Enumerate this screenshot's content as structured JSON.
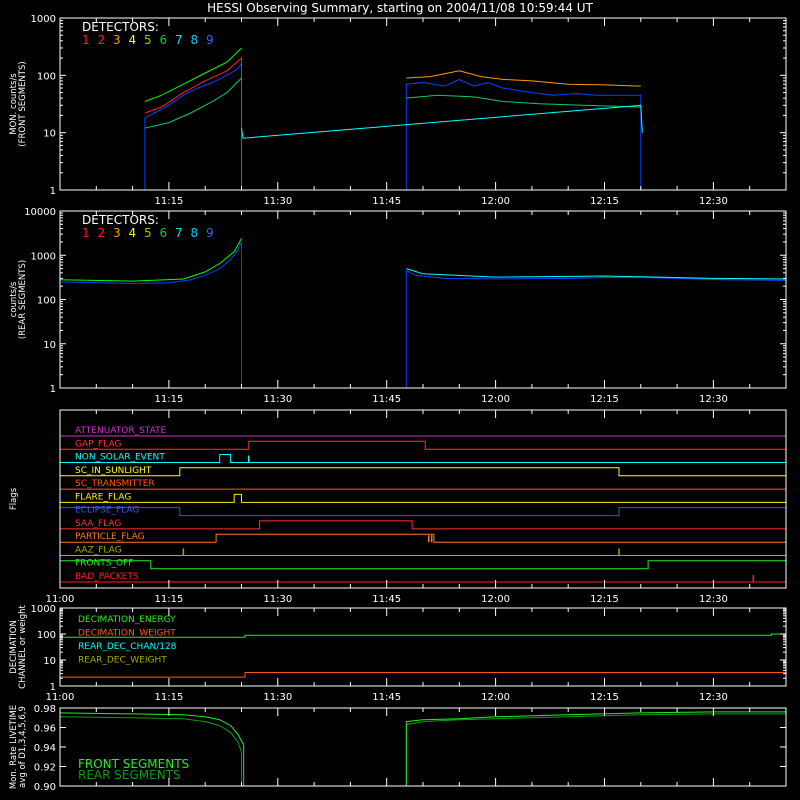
{
  "figure_title": "HESSI Observing Summary, starting on 2004/11/08 10:59:44 UT",
  "colors": {
    "background": "#000000",
    "axes": "#ffffff",
    "det": [
      "#ff2020",
      "#ff2020",
      "#ff9900",
      "#ffff00",
      "#00ff00",
      "#00cc66",
      "#00ffff",
      "#0044ff",
      "#2255ff"
    ],
    "det_label": [
      "#ff2020",
      "#ff2020",
      "#ff9900",
      "#ffff00",
      "#99cc00",
      "#00cc33",
      "#00dddd",
      "#00ccff",
      "#3366ff"
    ]
  },
  "chart_data": [
    {
      "id": "front",
      "type": "line",
      "ylabel": [
        "MON. counts/s",
        "(FRONT SEGMENTS)"
      ],
      "legend_title": "DETECTORS:",
      "legend_digits": [
        "1",
        "2",
        "3",
        "4",
        "5",
        "6",
        "7",
        "8",
        "9"
      ],
      "yscale": "log",
      "ylim": [
        1,
        1000
      ],
      "yticks": [
        1,
        10,
        100,
        1000
      ],
      "yticklabels": [
        "1",
        "10",
        "100",
        "1000"
      ],
      "xlim_min": [
        0,
        100
      ],
      "xticks_min": [
        15,
        30,
        45,
        60,
        75,
        90
      ],
      "xticklabels": [
        "11:15",
        "11:30",
        "11:45",
        "12:00",
        "12:15",
        "12:30"
      ],
      "series": [
        {
          "color_index": 7,
          "points": [
            [
              0,
              1
            ],
            [
              11.7,
              1
            ],
            [
              11.7,
              18
            ],
            [
              13,
              22
            ],
            [
              15,
              30
            ],
            [
              17,
              45
            ],
            [
              19,
              60
            ],
            [
              21,
              75
            ],
            [
              23,
              100
            ],
            [
              24.5,
              130
            ],
            [
              25,
              160
            ],
            [
              25,
              1
            ],
            [
              47.7,
              1
            ],
            [
              47.7,
              70
            ],
            [
              50,
              75
            ],
            [
              53,
              65
            ],
            [
              55,
              85
            ],
            [
              57,
              65
            ],
            [
              59,
              75
            ],
            [
              61,
              60
            ],
            [
              63,
              55
            ],
            [
              65,
              50
            ],
            [
              68,
              45
            ],
            [
              71,
              48
            ],
            [
              74,
              45
            ],
            [
              77,
              45
            ],
            [
              80,
              45
            ],
            [
              80,
              1
            ],
            [
              100,
              1
            ]
          ]
        },
        {
          "color_index": 0,
          "points": [
            [
              11.7,
              22
            ],
            [
              14,
              28
            ],
            [
              17,
              50
            ],
            [
              20,
              80
            ],
            [
              23,
              120
            ],
            [
              25,
              200
            ],
            [
              25,
              1
            ]
          ]
        },
        {
          "color_index": 4,
          "points": [
            [
              11.7,
              35
            ],
            [
              14,
              45
            ],
            [
              17,
              70
            ],
            [
              20,
              110
            ],
            [
              23,
              170
            ],
            [
              25,
              300
            ]
          ]
        },
        {
          "color_index": 5,
          "points": [
            [
              11.7,
              12
            ],
            [
              15,
              15
            ],
            [
              18,
              22
            ],
            [
              21,
              35
            ],
            [
              23,
              50
            ],
            [
              25,
              90
            ]
          ]
        },
        {
          "color_index": 2,
          "points": [
            [
              47.7,
              90
            ],
            [
              51,
              95
            ],
            [
              55,
              120
            ],
            [
              58,
              95
            ],
            [
              61,
              85
            ],
            [
              65,
              80
            ],
            [
              70,
              70
            ],
            [
              75,
              68
            ],
            [
              80,
              65
            ]
          ]
        },
        {
          "color_index": 5,
          "points": [
            [
              47.7,
              40
            ],
            [
              52,
              45
            ],
            [
              57,
              42
            ],
            [
              61,
              35
            ],
            [
              66,
              32
            ],
            [
              72,
              30
            ],
            [
              80,
              28
            ]
          ]
        },
        {
          "color_index": 6,
          "points": [
            [
              25,
              12
            ],
            [
              25.2,
              8
            ],
            [
              80,
              30
            ],
            [
              80.2,
              10
            ]
          ]
        }
      ]
    },
    {
      "id": "rear",
      "type": "line",
      "ylabel": [
        "counts/s",
        "(REAR SEGMENTS)"
      ],
      "legend_title": "DETECTORS:",
      "legend_digits": [
        "1",
        "2",
        "3",
        "4",
        "5",
        "6",
        "7",
        "8",
        "9"
      ],
      "yscale": "log",
      "ylim": [
        1,
        10000
      ],
      "yticks": [
        1,
        10,
        100,
        1000,
        10000
      ],
      "yticklabels": [
        "1",
        "10",
        "100",
        "1000",
        "10000"
      ],
      "xlim_min": [
        0,
        100
      ],
      "xticks_min": [
        15,
        30,
        45,
        60,
        75,
        90
      ],
      "xticklabels": [
        "11:15",
        "11:30",
        "11:45",
        "12:00",
        "12:15",
        "12:30"
      ],
      "series": [
        {
          "color_index": 7,
          "points": [
            [
              0,
              250
            ],
            [
              5,
              240
            ],
            [
              10,
              230
            ],
            [
              15,
              240
            ],
            [
              18,
              280
            ],
            [
              20,
              350
            ],
            [
              22,
              500
            ],
            [
              23.5,
              800
            ],
            [
              24.5,
              1300
            ],
            [
              25,
              2000
            ],
            [
              25,
              1
            ],
            [
              47.7,
              1
            ],
            [
              47.7,
              450
            ],
            [
              49,
              350
            ],
            [
              53,
              300
            ],
            [
              60,
              290
            ],
            [
              70,
              300
            ],
            [
              78,
              320
            ],
            [
              85,
              300
            ],
            [
              92,
              280
            ],
            [
              100,
              270
            ]
          ]
        },
        {
          "color_index": 4,
          "points": [
            [
              0,
              280
            ],
            [
              10,
              260
            ],
            [
              17,
              290
            ],
            [
              20,
              420
            ],
            [
              22,
              650
            ],
            [
              24,
              1200
            ],
            [
              25,
              2400
            ]
          ]
        },
        {
          "color_index": 6,
          "points": [
            [
              47.7,
              500
            ],
            [
              50,
              380
            ],
            [
              60,
              320
            ],
            [
              75,
              340
            ],
            [
              90,
              300
            ],
            [
              100,
              290
            ]
          ]
        }
      ]
    },
    {
      "id": "flags",
      "type": "line",
      "ylabel": [
        "Flags"
      ],
      "xlim_min": [
        0,
        100
      ],
      "xticks_min": [
        0,
        15,
        30,
        45,
        60,
        75,
        90
      ],
      "xticklabels": [
        "11:00",
        "11:15",
        "11:30",
        "11:45",
        "12:00",
        "12:15",
        "12:30"
      ],
      "flags": [
        {
          "name": "ATTENUATOR_STATE",
          "color": "#cc33cc",
          "segments": [
            [
              0,
              100,
              0
            ]
          ]
        },
        {
          "name": "GAP_FLAG",
          "color": "#ff3030",
          "segments": [
            [
              0,
              26,
              0
            ],
            [
              26,
              50.3,
              1
            ],
            [
              50.3,
              100,
              0
            ]
          ]
        },
        {
          "name": "NON_SOLAR_EVENT",
          "color": "#00ffff",
          "segments": [
            [
              0,
              22,
              0
            ],
            [
              22,
              23.5,
              1
            ],
            [
              23.5,
              100,
              0
            ]
          ],
          "spikes": [
            26
          ]
        },
        {
          "name": "SC_IN_SUNLIGHT",
          "color": "#ffff00",
          "segments": [
            [
              0,
              16.5,
              0
            ],
            [
              16.5,
              77,
              1
            ],
            [
              77,
              100,
              0
            ]
          ]
        },
        {
          "name": "SC_TRANSMITTER",
          "color": "#ff5511",
          "segments": [
            [
              0,
              100,
              0
            ]
          ]
        },
        {
          "name": "FLARE_FLAG",
          "color": "#ffee00",
          "segments": [
            [
              0,
              24,
              0
            ],
            [
              24,
              25,
              1
            ],
            [
              25,
              100,
              0
            ]
          ]
        },
        {
          "name": "ECLIPSE_FLAG",
          "color": "#3355ff",
          "segments": [
            [
              0,
              16.5,
              1
            ],
            [
              16.5,
              77,
              0
            ],
            [
              77,
              100,
              1
            ]
          ]
        },
        {
          "name": "SAA_FLAG",
          "color": "#ff3030",
          "segments": [
            [
              0,
              27.5,
              0
            ],
            [
              27.5,
              48.5,
              1
            ],
            [
              48.5,
              100,
              0
            ]
          ]
        },
        {
          "name": "PARTICLE_FLAG",
          "color": "#ff7722",
          "segments": [
            [
              0,
              21.5,
              0
            ],
            [
              21.5,
              51.5,
              1
            ],
            [
              51.5,
              100,
              0
            ]
          ],
          "spikes": [
            50.8,
            51.2
          ]
        },
        {
          "name": "AAZ_FLAG",
          "color": "#aaaa00",
          "segments": [
            [
              0,
              100,
              0
            ]
          ],
          "spikes": [
            17,
            77
          ]
        },
        {
          "name": "FRONTS_OFF",
          "color": "#22ee22",
          "segments": [
            [
              0,
              12.5,
              1
            ],
            [
              12.5,
              81,
              0
            ],
            [
              81,
              100,
              1
            ]
          ]
        },
        {
          "name": "BAD_PACKETS",
          "color": "#ff2020",
          "segments": [
            [
              0,
              100,
              0
            ]
          ],
          "spikes": [
            95.5
          ]
        }
      ]
    },
    {
      "id": "decimation",
      "type": "line",
      "ylabel": [
        "DECIMATION",
        "CHANNEL or weight"
      ],
      "yscale": "log",
      "ylim": [
        1,
        1000
      ],
      "yticks": [
        1,
        10,
        100,
        1000
      ],
      "yticklabels": [
        "1",
        "10",
        "100",
        "1000"
      ],
      "xlim_min": [
        0,
        100
      ],
      "xticks_min": [
        0,
        15,
        30,
        45,
        60,
        75,
        90
      ],
      "xticklabels": [
        "11:00",
        "11:15",
        "11:30",
        "11:45",
        "12:00",
        "12:15",
        "12:30"
      ],
      "legend": [
        {
          "label": "DECIMATION_ENERGY",
          "color": "#22ee22"
        },
        {
          "label": "DECIMATION_WEIGHT",
          "color": "#ff5511"
        },
        {
          "label": "REAR_DEC_CHAN/128",
          "color": "#00ffff"
        },
        {
          "label": "REAR_DEC_WEIGHT",
          "color": "#aaaa00"
        }
      ],
      "series": [
        {
          "label": "DECIMATION_ENERGY",
          "color": "#22ee22",
          "points": [
            [
              0,
              75
            ],
            [
              25.5,
              75
            ],
            [
              25.5,
              90
            ],
            [
              98,
              90
            ],
            [
              98,
              100
            ],
            [
              100,
              100
            ]
          ]
        },
        {
          "label": "DECIMATION_WEIGHT",
          "color": "#ff5511",
          "points": [
            [
              0,
              2.2
            ],
            [
              25.5,
              2.2
            ],
            [
              25.5,
              3.3
            ],
            [
              100,
              3.3
            ]
          ]
        }
      ]
    },
    {
      "id": "livetime",
      "type": "line",
      "ylabel": [
        "Mon. Rate LIVETIME",
        "avg of D1,3,4,5,6,9"
      ],
      "ylim": [
        0.9,
        0.98
      ],
      "yticks": [
        0.9,
        0.92,
        0.94,
        0.96,
        0.98
      ],
      "yticklabels": [
        "0.90",
        "0.92",
        "0.94",
        "0.96",
        "0.98"
      ],
      "xlim_min": [
        0,
        100
      ],
      "legend": [
        {
          "label": "FRONT SEGMENTS",
          "color": "#22ee22"
        },
        {
          "label": "REAR SEGMENTS",
          "color": "#119911"
        }
      ],
      "series": [
        {
          "label": "REAR SEGMENTS",
          "color": "#119911",
          "points": [
            [
              0,
              0.971
            ],
            [
              10,
              0.97
            ],
            [
              17,
              0.969
            ],
            [
              20,
              0.966
            ],
            [
              22,
              0.962
            ],
            [
              23.5,
              0.955
            ],
            [
              24.5,
              0.945
            ],
            [
              25,
              0.935
            ],
            [
              25,
              0.9
            ],
            [
              47.7,
              0.9
            ],
            [
              47.7,
              0.963
            ],
            [
              50,
              0.966
            ],
            [
              55,
              0.968
            ],
            [
              60,
              0.969
            ],
            [
              70,
              0.971
            ],
            [
              80,
              0.973
            ],
            [
              90,
              0.974
            ],
            [
              100,
              0.974
            ]
          ]
        },
        {
          "label": "FRONT SEGMENTS",
          "color": "#22ee22",
          "points": [
            [
              0,
              0.975
            ],
            [
              10,
              0.974
            ],
            [
              17,
              0.973
            ],
            [
              20,
              0.971
            ],
            [
              22,
              0.968
            ],
            [
              23.5,
              0.962
            ],
            [
              24.5,
              0.953
            ],
            [
              25.3,
              0.942
            ],
            [
              25.3,
              0.9
            ],
            [
              47.7,
              0.9
            ],
            [
              47.7,
              0.966
            ],
            [
              50,
              0.968
            ],
            [
              55,
              0.969
            ],
            [
              60,
              0.971
            ],
            [
              70,
              0.973
            ],
            [
              80,
              0.975
            ],
            [
              90,
              0.976
            ],
            [
              100,
              0.976
            ]
          ]
        }
      ]
    }
  ]
}
